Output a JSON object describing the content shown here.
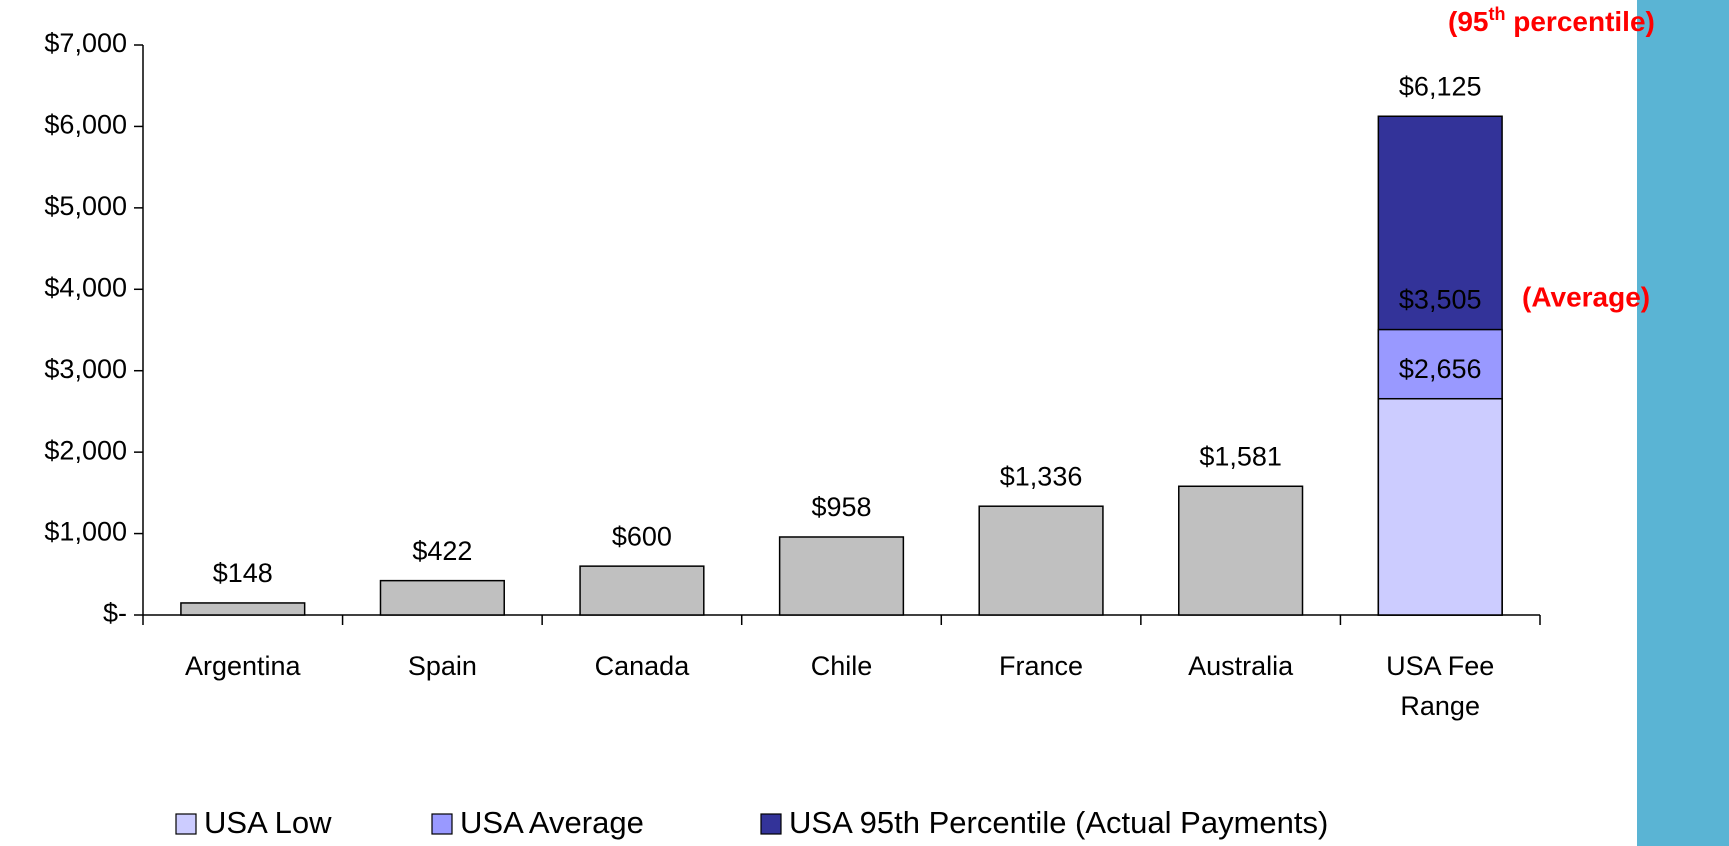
{
  "chart_data": {
    "type": "bar",
    "categories": [
      "Argentina",
      "Spain",
      "Canada",
      "Chile",
      "France",
      "Australia",
      "USA Fee Range"
    ],
    "values": [
      148,
      422,
      600,
      958,
      1336,
      1581,
      null
    ],
    "value_labels": [
      "$148",
      "$422",
      "$600",
      "$958",
      "$1,336",
      "$1,581",
      null
    ],
    "color": "#c0c0c0",
    "series": [
      {
        "name": "USA Low",
        "color": "#ccccff",
        "values": [
          null,
          null,
          null,
          null,
          null,
          null,
          2656
        ],
        "value_labels": [
          null,
          null,
          null,
          null,
          null,
          null,
          "$2,656"
        ]
      },
      {
        "name": "USA Average",
        "color": "#9999ff",
        "values": [
          null,
          null,
          null,
          null,
          null,
          null,
          3505
        ],
        "value_labels": [
          null,
          null,
          null,
          null,
          null,
          null,
          "$3,505"
        ]
      },
      {
        "name": "USA 95th Percentile (Actual Payments)",
        "color": "#333399",
        "values": [
          null,
          null,
          null,
          null,
          null,
          null,
          6125
        ],
        "value_labels": [
          null,
          null,
          null,
          null,
          null,
          null,
          "$6,125"
        ]
      }
    ],
    "ylim": [
      0,
      7000
    ],
    "yticks": [
      {
        "value": 0,
        "label": "$-"
      },
      {
        "value": 1000,
        "label": "$1,000"
      },
      {
        "value": 2000,
        "label": "$2,000"
      },
      {
        "value": 3000,
        "label": "$3,000"
      },
      {
        "value": 4000,
        "label": "$4,000"
      },
      {
        "value": 5000,
        "label": "$5,000"
      },
      {
        "value": 6000,
        "label": "$6,000"
      },
      {
        "value": 7000,
        "label": "$7,000"
      }
    ],
    "annotations": [
      {
        "parts": [
          "(95",
          "th",
          " percentile)"
        ]
      },
      "(Average)"
    ],
    "grid": false
  }
}
